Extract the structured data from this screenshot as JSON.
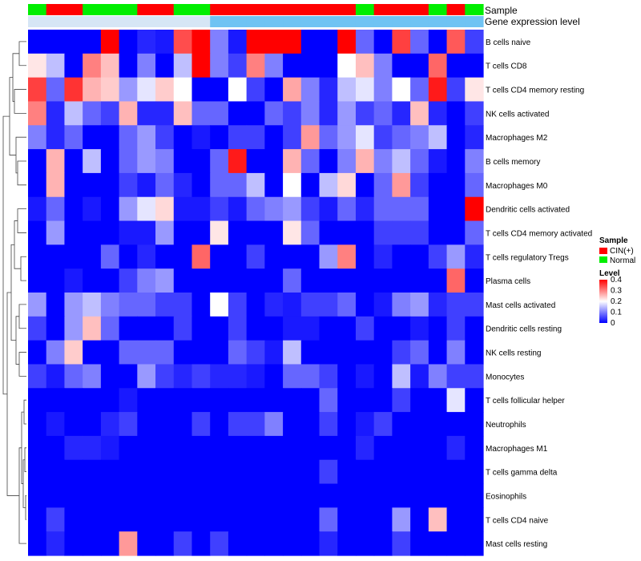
{
  "chart_data": {
    "type": "heatmap",
    "title": "",
    "rows": [
      "B cells naive",
      "T cells CD8",
      "T cells CD4 memory resting",
      "NK cells activated",
      "Macrophages M2",
      "B cells memory",
      "Macrophages M0",
      "Dendritic cells activated",
      "T cells CD4 memory activated",
      "T cells regulatory  Tregs",
      "Plasma cells",
      "Mast cells activated",
      "Dendritic cells resting",
      "NK cells resting",
      "Monocytes",
      "T cells follicular helper",
      "Neutrophils",
      "Macrophages M1",
      "T cells gamma delta",
      "Eosinophils",
      "T cells CD4 naive",
      "Mast cells resting"
    ],
    "column_annotations": [
      {
        "name": "Sample",
        "values": [
          "Normal",
          "CIN(+)",
          "CIN(+)",
          "Normal",
          "Normal",
          "Normal",
          "CIN(+)",
          "CIN(+)",
          "Normal",
          "Normal",
          "CIN(+)",
          "CIN(+)",
          "CIN(+)",
          "CIN(+)",
          "CIN(+)",
          "CIN(+)",
          "CIN(+)",
          "CIN(+)",
          "Normal",
          "CIN(+)",
          "CIN(+)",
          "CIN(+)",
          "Normal",
          "CIN(+)",
          "Normal"
        ]
      },
      {
        "name": "Gene expression level",
        "values": [
          "Low",
          "Low",
          "Low",
          "Low",
          "Low",
          "Low",
          "Low",
          "Low",
          "Low",
          "Low",
          "High",
          "High",
          "High",
          "High",
          "High",
          "High",
          "High",
          "High",
          "High",
          "High",
          "High",
          "High",
          "High",
          "High",
          "High"
        ]
      }
    ],
    "values": [
      [
        0.0,
        0.0,
        0.0,
        0.0,
        0.4,
        0.0,
        0.03,
        0.02,
        0.34,
        0.4,
        0.1,
        0.02,
        0.4,
        0.4,
        0.4,
        0.0,
        0.0,
        0.4,
        0.08,
        0.0,
        0.35,
        0.08,
        0.0,
        0.33,
        0.05
      ],
      [
        0.22,
        0.15,
        0.0,
        0.3,
        0.25,
        0.0,
        0.1,
        0.0,
        0.15,
        0.4,
        0.1,
        0.05,
        0.3,
        0.1,
        0.0,
        0.0,
        0.0,
        0.2,
        0.25,
        0.1,
        0.0,
        0.0,
        0.32,
        0.0,
        0.0
      ],
      [
        0.35,
        0.08,
        0.36,
        0.26,
        0.24,
        0.12,
        0.18,
        0.24,
        0.2,
        0.0,
        0.0,
        0.2,
        0.05,
        0.0,
        0.27,
        0.1,
        0.03,
        0.15,
        0.18,
        0.1,
        0.2,
        0.08,
        0.38,
        0.05,
        0.22
      ],
      [
        0.3,
        0.03,
        0.15,
        0.08,
        0.05,
        0.26,
        0.03,
        0.03,
        0.25,
        0.08,
        0.08,
        0.0,
        0.0,
        0.08,
        0.05,
        0.1,
        0.03,
        0.12,
        0.05,
        0.08,
        0.03,
        0.25,
        0.03,
        0.0,
        0.05
      ],
      [
        0.1,
        0.03,
        0.08,
        0.0,
        0.0,
        0.08,
        0.12,
        0.05,
        0.0,
        0.02,
        0.0,
        0.05,
        0.05,
        0.0,
        0.05,
        0.28,
        0.08,
        0.12,
        0.18,
        0.05,
        0.08,
        0.1,
        0.15,
        0.0,
        0.03
      ],
      [
        0.0,
        0.26,
        0.0,
        0.15,
        0.0,
        0.08,
        0.12,
        0.1,
        0.0,
        0.0,
        0.08,
        0.38,
        0.0,
        0.0,
        0.26,
        0.08,
        0.0,
        0.1,
        0.26,
        0.1,
        0.15,
        0.08,
        0.02,
        0.0,
        0.1
      ],
      [
        0.0,
        0.26,
        0.0,
        0.0,
        0.0,
        0.05,
        0.02,
        0.08,
        0.03,
        0.0,
        0.08,
        0.08,
        0.15,
        0.0,
        0.2,
        0.0,
        0.15,
        0.23,
        0.0,
        0.08,
        0.28,
        0.05,
        0.0,
        0.0,
        0.08
      ],
      [
        0.02,
        0.08,
        0.0,
        0.02,
        0.0,
        0.12,
        0.18,
        0.23,
        0.02,
        0.02,
        0.05,
        0.02,
        0.08,
        0.1,
        0.12,
        0.05,
        0.02,
        0.08,
        0.03,
        0.08,
        0.08,
        0.08,
        0.0,
        0.0,
        0.4
      ],
      [
        0.0,
        0.12,
        0.0,
        0.0,
        0.0,
        0.02,
        0.02,
        0.12,
        0.0,
        0.0,
        0.22,
        0.0,
        0.0,
        0.0,
        0.22,
        0.08,
        0.0,
        0.0,
        0.0,
        0.05,
        0.05,
        0.05,
        0.0,
        0.0,
        0.08
      ],
      [
        0.0,
        0.0,
        0.0,
        0.0,
        0.08,
        0.0,
        0.03,
        0.0,
        0.0,
        0.32,
        0.0,
        0.0,
        0.05,
        0.0,
        0.0,
        0.0,
        0.12,
        0.3,
        0.0,
        0.03,
        0.0,
        0.0,
        0.05,
        0.12,
        0.03
      ],
      [
        0.0,
        0.0,
        0.02,
        0.0,
        0.0,
        0.05,
        0.1,
        0.12,
        0.0,
        0.0,
        0.0,
        0.0,
        0.0,
        0.0,
        0.08,
        0.0,
        0.0,
        0.0,
        0.0,
        0.0,
        0.0,
        0.0,
        0.0,
        0.32,
        0.0
      ],
      [
        0.12,
        0.0,
        0.12,
        0.15,
        0.1,
        0.08,
        0.08,
        0.05,
        0.05,
        0.0,
        0.2,
        0.05,
        0.0,
        0.03,
        0.02,
        0.05,
        0.05,
        0.08,
        0.0,
        0.02,
        0.1,
        0.12,
        0.03,
        0.05,
        0.05
      ],
      [
        0.05,
        0.0,
        0.12,
        0.25,
        0.08,
        0.0,
        0.0,
        0.0,
        0.05,
        0.0,
        0.0,
        0.05,
        0.0,
        0.0,
        0.02,
        0.02,
        0.0,
        0.0,
        0.05,
        0.0,
        0.0,
        0.02,
        0.0,
        0.05,
        0.0
      ],
      [
        0.0,
        0.1,
        0.24,
        0.0,
        0.0,
        0.08,
        0.08,
        0.08,
        0.0,
        0.0,
        0.0,
        0.08,
        0.05,
        0.02,
        0.15,
        0.0,
        0.0,
        0.0,
        0.0,
        0.0,
        0.05,
        0.08,
        0.0,
        0.1,
        0.0
      ],
      [
        0.05,
        0.02,
        0.08,
        0.1,
        0.0,
        0.0,
        0.12,
        0.05,
        0.03,
        0.05,
        0.03,
        0.03,
        0.02,
        0.0,
        0.08,
        0.08,
        0.05,
        0.0,
        0.02,
        0.0,
        0.15,
        0.02,
        0.1,
        0.05,
        0.05
      ],
      [
        0.0,
        0.0,
        0.0,
        0.0,
        0.0,
        0.02,
        0.0,
        0.0,
        0.0,
        0.0,
        0.0,
        0.0,
        0.0,
        0.0,
        0.0,
        0.0,
        0.08,
        0.0,
        0.0,
        0.0,
        0.05,
        0.0,
        0.0,
        0.18,
        0.0
      ],
      [
        0.0,
        0.02,
        0.0,
        0.0,
        0.03,
        0.05,
        0.0,
        0.0,
        0.0,
        0.05,
        0.0,
        0.05,
        0.05,
        0.1,
        0.0,
        0.0,
        0.05,
        0.0,
        0.02,
        0.05,
        0.0,
        0.0,
        0.0,
        0.0,
        0.0
      ],
      [
        0.0,
        0.0,
        0.03,
        0.03,
        0.02,
        0.0,
        0.0,
        0.0,
        0.0,
        0.0,
        0.0,
        0.0,
        0.0,
        0.0,
        0.0,
        0.0,
        0.0,
        0.0,
        0.03,
        0.0,
        0.0,
        0.0,
        0.0,
        0.03,
        0.0
      ],
      [
        0.0,
        0.0,
        0.0,
        0.0,
        0.0,
        0.0,
        0.0,
        0.0,
        0.0,
        0.0,
        0.0,
        0.0,
        0.0,
        0.0,
        0.0,
        0.0,
        0.05,
        0.0,
        0.0,
        0.0,
        0.0,
        0.0,
        0.0,
        0.0,
        0.0
      ],
      [
        0.0,
        0.0,
        0.0,
        0.0,
        0.0,
        0.0,
        0.0,
        0.0,
        0.0,
        0.0,
        0.0,
        0.0,
        0.0,
        0.0,
        0.0,
        0.0,
        0.0,
        0.0,
        0.0,
        0.0,
        0.0,
        0.0,
        0.0,
        0.0,
        0.0
      ],
      [
        0.0,
        0.05,
        0.0,
        0.0,
        0.0,
        0.0,
        0.0,
        0.0,
        0.0,
        0.0,
        0.0,
        0.0,
        0.0,
        0.0,
        0.0,
        0.0,
        0.08,
        0.0,
        0.0,
        0.0,
        0.12,
        0.0,
        0.25,
        0.0,
        0.0
      ],
      [
        0.0,
        0.03,
        0.0,
        0.0,
        0.0,
        0.28,
        0.0,
        0.0,
        0.05,
        0.0,
        0.05,
        0.0,
        0.0,
        0.0,
        0.0,
        0.0,
        0.03,
        0.0,
        0.0,
        0.0,
        0.05,
        0.0,
        0.0,
        0.0,
        0.0
      ]
    ],
    "annotation_labels": [
      "Sample",
      "Gene expression level"
    ],
    "legend": {
      "sample_title": "Sample",
      "sample_entries": [
        {
          "label": "CIN(+)",
          "color": "#ff0000"
        },
        {
          "label": "Normal",
          "color": "#00ee00"
        }
      ],
      "level_title": "Level",
      "level_ticks": [
        0.4,
        0.3,
        0.2,
        0.1,
        0
      ],
      "level_tick_labels": [
        "0.4",
        "0.3",
        "0.2",
        "0.1",
        "0"
      ],
      "level_range": [
        0,
        0.4
      ]
    },
    "gene_level_colors": {
      "Low": "#d6e6f5",
      "High": "#6fc3f3"
    },
    "colors": {
      "low": "#0000ff",
      "mid": "#ffffff",
      "high": "#ff0000"
    }
  }
}
